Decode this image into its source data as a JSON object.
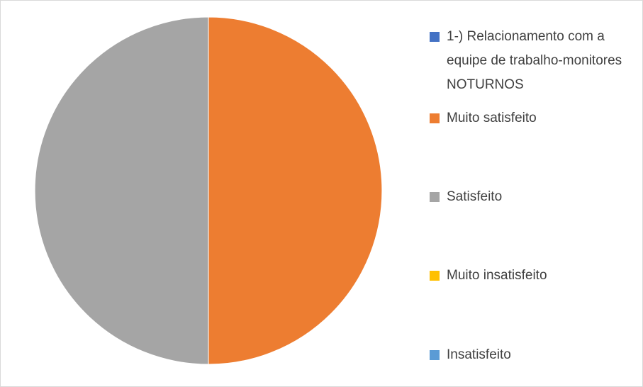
{
  "chart_data": {
    "type": "pie",
    "categories": [
      "1-) Relacionamento com a equipe de trabalho-monitores NOTURNOS",
      "Muito satisfeito",
      "Satisfeito",
      "Muito insatisfeito",
      "Insatisfeito"
    ],
    "values": [
      0,
      50,
      50,
      0,
      0
    ],
    "colors": [
      "#4472c4",
      "#ed7d31",
      "#a5a5a5",
      "#ffc000",
      "#5b9bd5"
    ],
    "legend": "right"
  }
}
